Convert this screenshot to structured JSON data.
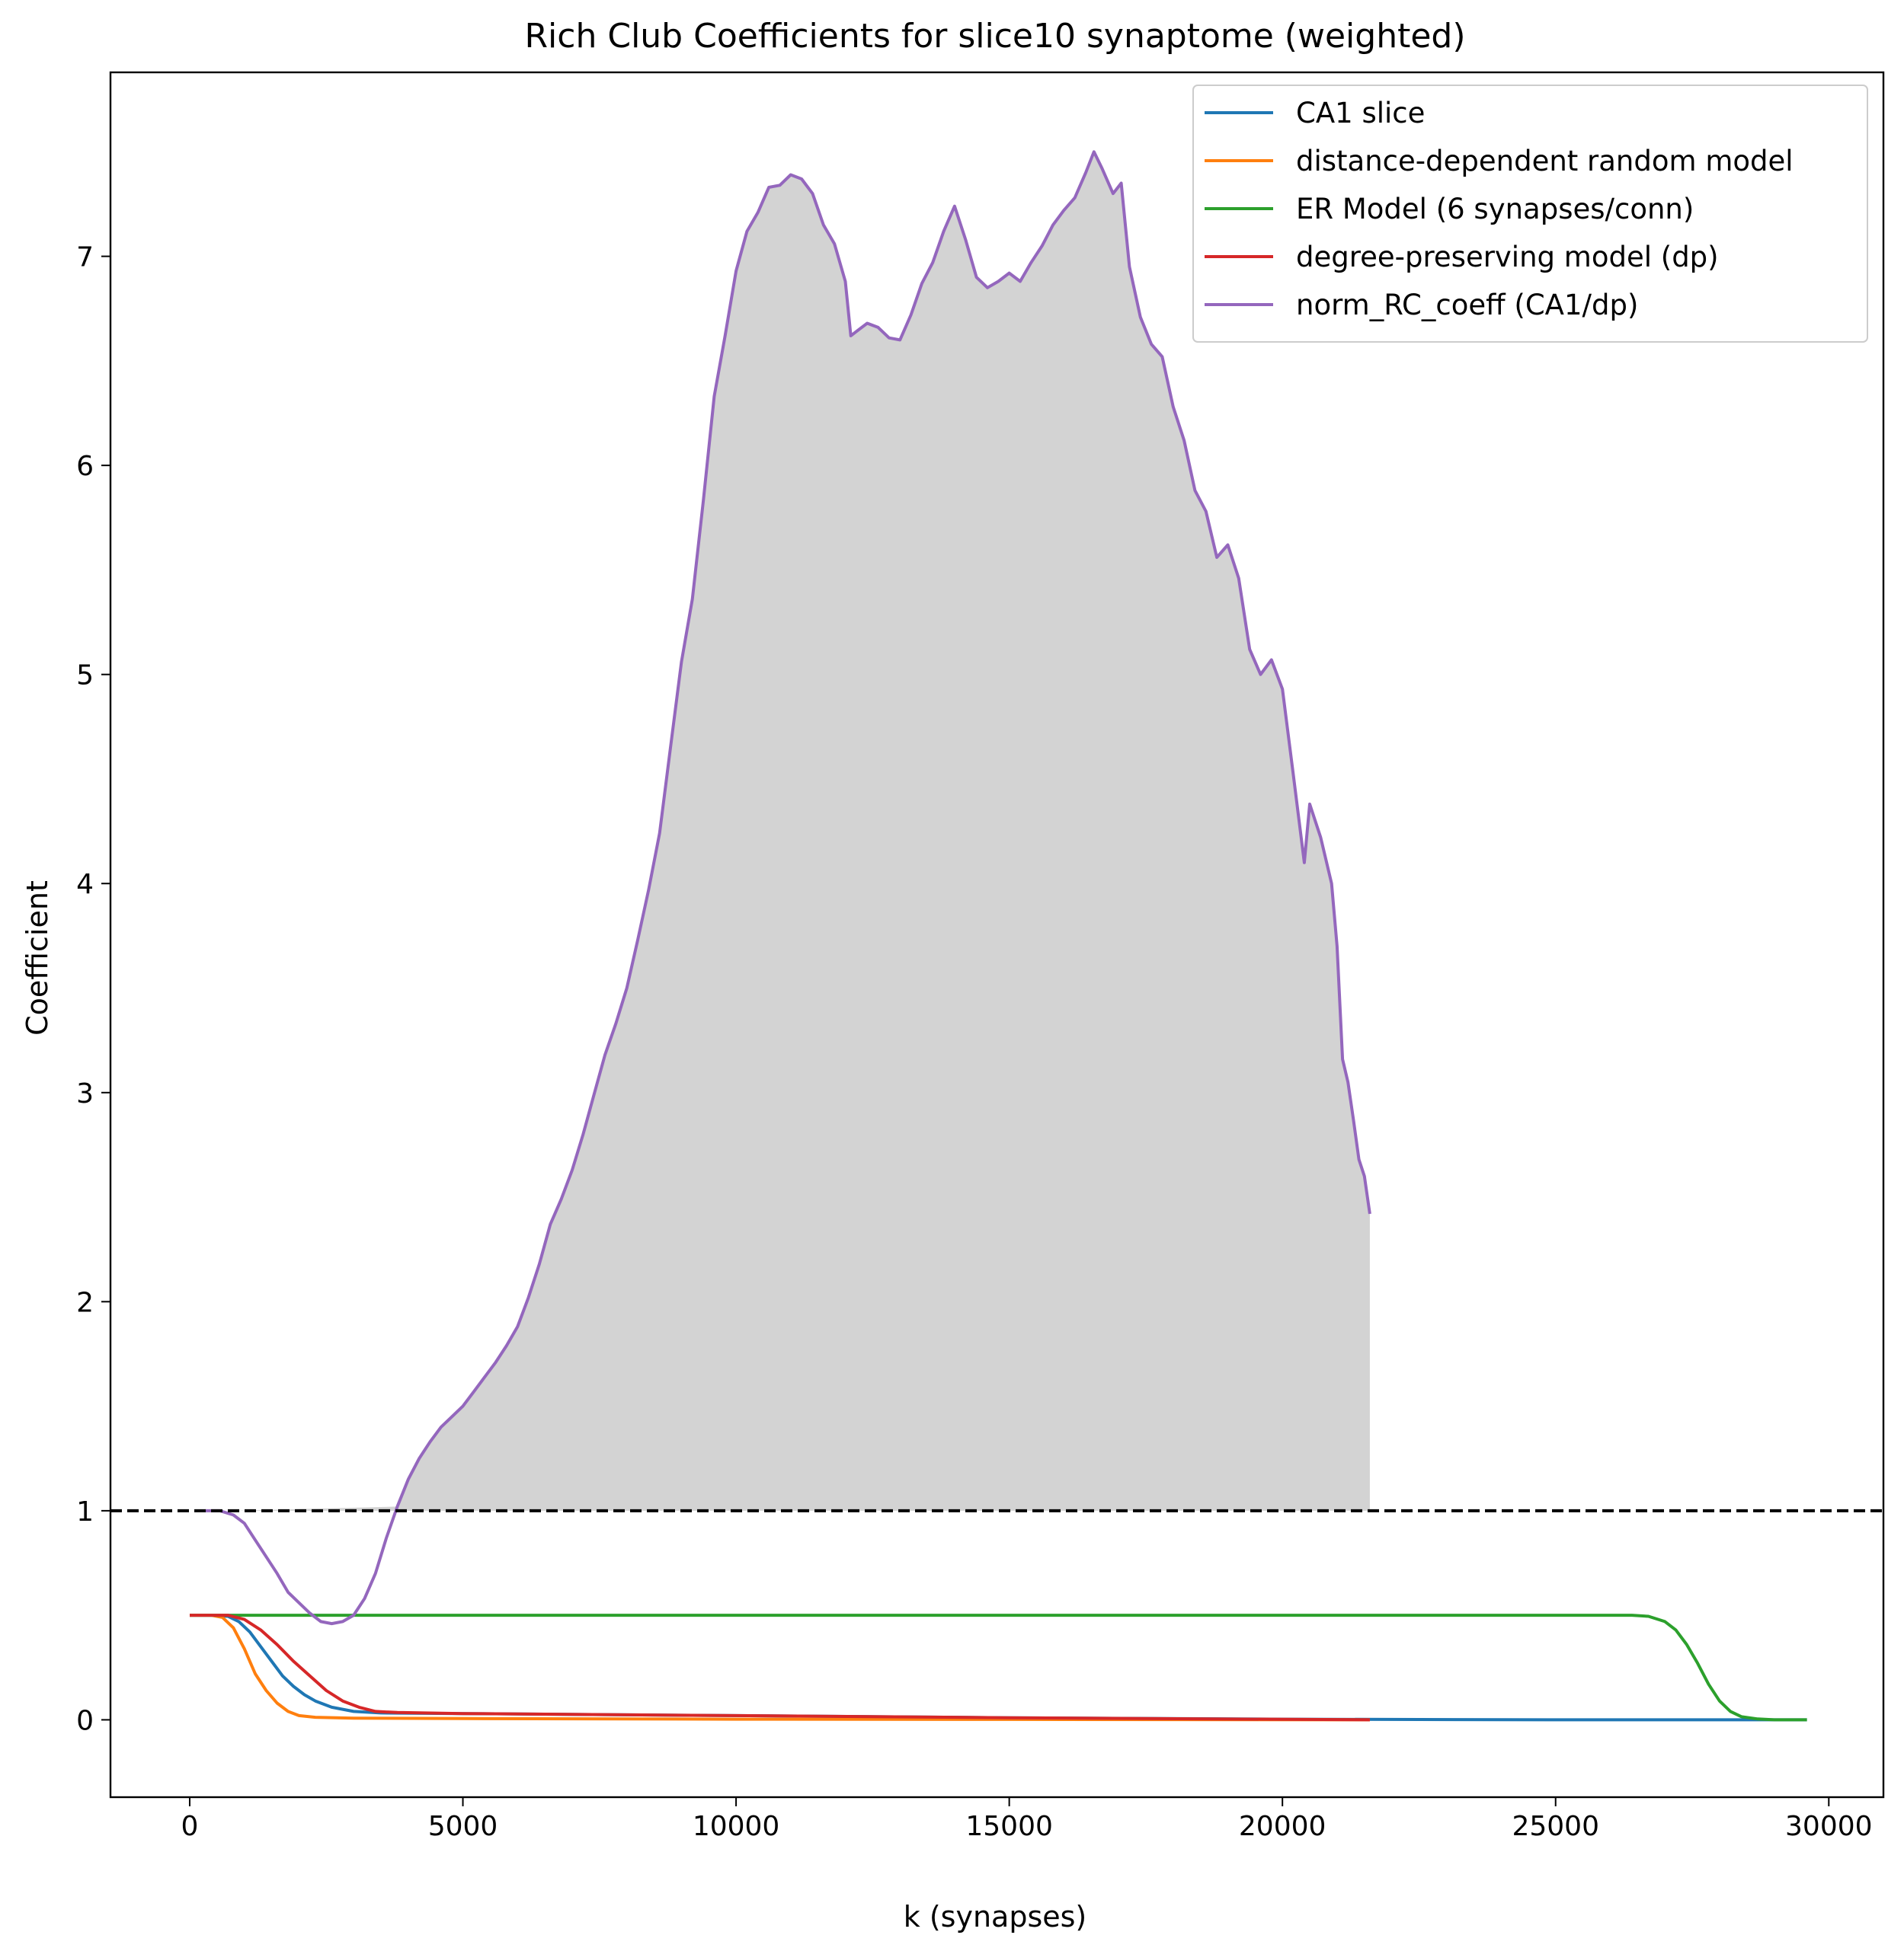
{
  "chart_data": {
    "type": "line",
    "title": "Rich Club Coefficients for slice10 synaptome (weighted)",
    "xlabel": "k (synapses)",
    "ylabel": "Coefficient",
    "xlim": [
      -1450,
      31000
    ],
    "ylim": [
      -0.37,
      7.88
    ],
    "xticks": [
      0,
      5000,
      10000,
      15000,
      20000,
      25000,
      30000
    ],
    "xtick_labels": [
      "0",
      "5000",
      "10000",
      "15000",
      "20000",
      "25000",
      "30000"
    ],
    "yticks": [
      0,
      1,
      2,
      3,
      4,
      5,
      6,
      7
    ],
    "ytick_labels": [
      "0",
      "1",
      "2",
      "3",
      "4",
      "5",
      "6",
      "7"
    ],
    "grid": false,
    "legend_position": "top-right",
    "reference_line": {
      "y": 1,
      "style": "dashed",
      "color": "#000000"
    },
    "fill": {
      "series": "norm_RC_coeff (CA1/dp)",
      "baseline": 1,
      "where": "above",
      "color": "#d3d3d3"
    },
    "series": [
      {
        "name": "CA1 slice",
        "color": "#1f77b4",
        "points": [
          [
            0,
            0.5
          ],
          [
            400,
            0.5
          ],
          [
            700,
            0.495
          ],
          [
            900,
            0.47
          ],
          [
            1100,
            0.42
          ],
          [
            1300,
            0.35
          ],
          [
            1500,
            0.28
          ],
          [
            1700,
            0.21
          ],
          [
            1900,
            0.16
          ],
          [
            2100,
            0.12
          ],
          [
            2300,
            0.09
          ],
          [
            2600,
            0.06
          ],
          [
            3000,
            0.04
          ],
          [
            3500,
            0.033
          ],
          [
            5000,
            0.03
          ],
          [
            10000,
            0.02
          ],
          [
            15000,
            0.01
          ],
          [
            20000,
            0.003
          ],
          [
            25000,
            0.0
          ],
          [
            29600,
            0.0
          ]
        ]
      },
      {
        "name": "distance-dependent random model",
        "color": "#ff7f0e",
        "points": [
          [
            0,
            0.5
          ],
          [
            400,
            0.5
          ],
          [
            600,
            0.49
          ],
          [
            800,
            0.44
          ],
          [
            1000,
            0.34
          ],
          [
            1200,
            0.22
          ],
          [
            1400,
            0.14
          ],
          [
            1600,
            0.08
          ],
          [
            1800,
            0.04
          ],
          [
            2000,
            0.02
          ],
          [
            2300,
            0.012
          ],
          [
            3000,
            0.008
          ],
          [
            5000,
            0.006
          ],
          [
            10000,
            0.003
          ],
          [
            15000,
            0.002
          ],
          [
            21600,
            0.0
          ]
        ]
      },
      {
        "name": "ER Model (6 synapses/conn)",
        "color": "#2ca02c",
        "points": [
          [
            0,
            0.5
          ],
          [
            10000,
            0.5
          ],
          [
            20000,
            0.5
          ],
          [
            26400,
            0.5
          ],
          [
            26700,
            0.495
          ],
          [
            27000,
            0.47
          ],
          [
            27200,
            0.43
          ],
          [
            27400,
            0.36
          ],
          [
            27600,
            0.27
          ],
          [
            27800,
            0.17
          ],
          [
            28000,
            0.09
          ],
          [
            28200,
            0.04
          ],
          [
            28400,
            0.015
          ],
          [
            28700,
            0.004
          ],
          [
            29000,
            0.0
          ],
          [
            29600,
            0.0
          ]
        ]
      },
      {
        "name": "degree-preserving model (dp)",
        "color": "#d62728",
        "points": [
          [
            0,
            0.5
          ],
          [
            700,
            0.5
          ],
          [
            1000,
            0.48
          ],
          [
            1300,
            0.43
          ],
          [
            1600,
            0.36
          ],
          [
            1900,
            0.28
          ],
          [
            2200,
            0.21
          ],
          [
            2500,
            0.14
          ],
          [
            2800,
            0.09
          ],
          [
            3100,
            0.06
          ],
          [
            3400,
            0.04
          ],
          [
            3800,
            0.035
          ],
          [
            5000,
            0.03
          ],
          [
            10000,
            0.02
          ],
          [
            15000,
            0.01
          ],
          [
            21600,
            0.0
          ]
        ]
      },
      {
        "name": "norm_RC_coeff (CA1/dp)",
        "color": "#9467bd",
        "points": [
          [
            280,
            1.0
          ],
          [
            550,
            1.0
          ],
          [
            800,
            0.98
          ],
          [
            1000,
            0.94
          ],
          [
            1200,
            0.86
          ],
          [
            1400,
            0.78
          ],
          [
            1600,
            0.7
          ],
          [
            1800,
            0.61
          ],
          [
            2000,
            0.56
          ],
          [
            2200,
            0.51
          ],
          [
            2400,
            0.47
          ],
          [
            2600,
            0.46
          ],
          [
            2800,
            0.47
          ],
          [
            3000,
            0.5
          ],
          [
            3200,
            0.58
          ],
          [
            3400,
            0.7
          ],
          [
            3600,
            0.87
          ],
          [
            3800,
            1.02
          ],
          [
            4000,
            1.15
          ],
          [
            4200,
            1.25
          ],
          [
            4400,
            1.33
          ],
          [
            4600,
            1.4
          ],
          [
            4800,
            1.45
          ],
          [
            5000,
            1.5
          ],
          [
            5200,
            1.57
          ],
          [
            5400,
            1.64
          ],
          [
            5600,
            1.71
          ],
          [
            5800,
            1.79
          ],
          [
            6000,
            1.88
          ],
          [
            6200,
            2.02
          ],
          [
            6400,
            2.18
          ],
          [
            6600,
            2.37
          ],
          [
            6800,
            2.49
          ],
          [
            7000,
            2.63
          ],
          [
            7200,
            2.8
          ],
          [
            7400,
            2.99
          ],
          [
            7600,
            3.18
          ],
          [
            7800,
            3.33
          ],
          [
            8000,
            3.5
          ],
          [
            8200,
            3.73
          ],
          [
            8400,
            3.97
          ],
          [
            8600,
            4.24
          ],
          [
            8800,
            4.65
          ],
          [
            9000,
            5.06
          ],
          [
            9200,
            5.36
          ],
          [
            9400,
            5.83
          ],
          [
            9600,
            6.33
          ],
          [
            9800,
            6.62
          ],
          [
            10000,
            6.93
          ],
          [
            10200,
            7.12
          ],
          [
            10400,
            7.21
          ],
          [
            10600,
            7.33
          ],
          [
            10800,
            7.34
          ],
          [
            11000,
            7.39
          ],
          [
            11200,
            7.37
          ],
          [
            11400,
            7.3
          ],
          [
            11600,
            7.15
          ],
          [
            11800,
            7.06
          ],
          [
            12000,
            6.88
          ],
          [
            12100,
            6.62
          ],
          [
            12200,
            6.64
          ],
          [
            12400,
            6.68
          ],
          [
            12600,
            6.66
          ],
          [
            12800,
            6.61
          ],
          [
            13000,
            6.6
          ],
          [
            13200,
            6.72
          ],
          [
            13400,
            6.87
          ],
          [
            13600,
            6.97
          ],
          [
            13800,
            7.12
          ],
          [
            14000,
            7.24
          ],
          [
            14200,
            7.08
          ],
          [
            14400,
            6.9
          ],
          [
            14600,
            6.85
          ],
          [
            14800,
            6.88
          ],
          [
            15000,
            6.92
          ],
          [
            15200,
            6.88
          ],
          [
            15400,
            6.97
          ],
          [
            15600,
            7.05
          ],
          [
            15800,
            7.15
          ],
          [
            16000,
            7.22
          ],
          [
            16200,
            7.28
          ],
          [
            16400,
            7.4
          ],
          [
            16550,
            7.5
          ],
          [
            16700,
            7.42
          ],
          [
            16900,
            7.3
          ],
          [
            17050,
            7.35
          ],
          [
            17200,
            6.95
          ],
          [
            17400,
            6.71
          ],
          [
            17600,
            6.58
          ],
          [
            17800,
            6.52
          ],
          [
            18000,
            6.28
          ],
          [
            18200,
            6.12
          ],
          [
            18400,
            5.88
          ],
          [
            18600,
            5.78
          ],
          [
            18800,
            5.56
          ],
          [
            19000,
            5.62
          ],
          [
            19200,
            5.46
          ],
          [
            19400,
            5.12
          ],
          [
            19600,
            5.0
          ],
          [
            19800,
            5.07
          ],
          [
            20000,
            4.93
          ],
          [
            20200,
            4.52
          ],
          [
            20400,
            4.1
          ],
          [
            20500,
            4.38
          ],
          [
            20700,
            4.22
          ],
          [
            20900,
            4.0
          ],
          [
            21000,
            3.7
          ],
          [
            21100,
            3.16
          ],
          [
            21200,
            3.05
          ],
          [
            21300,
            2.87
          ],
          [
            21400,
            2.68
          ],
          [
            21500,
            2.6
          ],
          [
            21600,
            2.42
          ]
        ]
      }
    ]
  }
}
